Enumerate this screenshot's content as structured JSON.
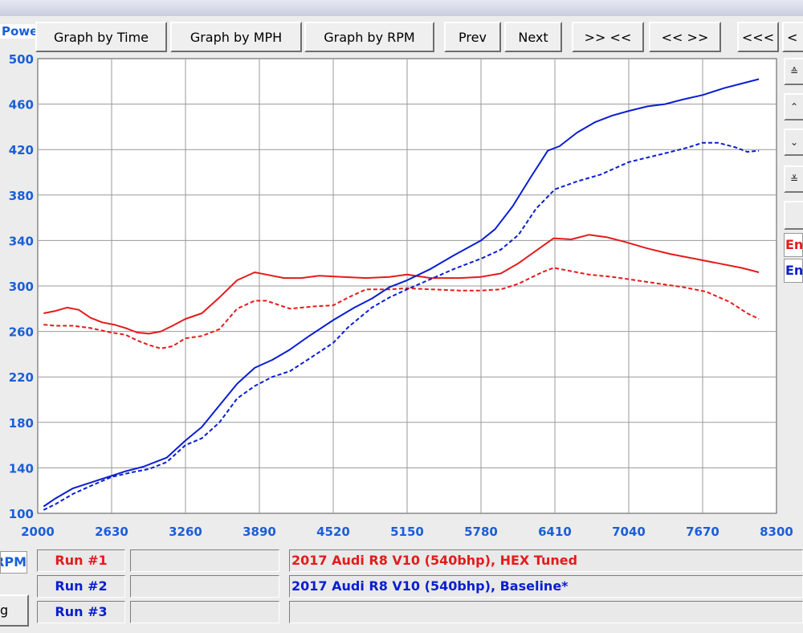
{
  "toolbar": {
    "power_label": "Powe",
    "graph_by_time": "Graph by Time",
    "graph_by_mph": "Graph by MPH",
    "graph_by_rpm": "Graph by RPM",
    "prev": "Prev",
    "next": "Next",
    "zoom_in": ">> <<",
    "zoom_out": "<< >>",
    "scroll_left": "<<<",
    "scroll_left_2": "<"
  },
  "colors": {
    "run1": "#e41b1b",
    "run2": "#0a1ed0",
    "axis_text": "#1a5fd8",
    "grid": "#9a9a9a"
  },
  "right_legend": {
    "run1_label": "Eng",
    "run2_label": "Eng"
  },
  "bottom": {
    "unit_label": "RPM",
    "button_label": "g",
    "runs": [
      {
        "label": "Run #1",
        "description": "2017 Audi R8 V10 (540bhp), HEX Tuned"
      },
      {
        "label": "Run #2",
        "description": "2017 Audi R8 V10 (540bhp), Baseline*"
      },
      {
        "label": "Run #3",
        "description": ""
      }
    ]
  },
  "chart_data": {
    "type": "line",
    "xlim": [
      2000,
      8300
    ],
    "ylim": [
      100,
      500
    ],
    "x_ticks": [
      2000,
      2630,
      3260,
      3890,
      4520,
      5150,
      5780,
      6410,
      7040,
      7670,
      8300
    ],
    "y_ticks": [
      100,
      140,
      180,
      220,
      260,
      300,
      340,
      380,
      420,
      460,
      500
    ],
    "grid": true,
    "series": [
      {
        "run": 1,
        "color": "red",
        "style": "solid",
        "points": [
          [
            2050,
            276
          ],
          [
            2150,
            278
          ],
          [
            2250,
            281
          ],
          [
            2350,
            279
          ],
          [
            2450,
            272
          ],
          [
            2550,
            268
          ],
          [
            2650,
            266
          ],
          [
            2750,
            263
          ],
          [
            2850,
            259
          ],
          [
            2950,
            258
          ],
          [
            3050,
            260
          ],
          [
            3150,
            265
          ],
          [
            3260,
            271
          ],
          [
            3400,
            276
          ],
          [
            3550,
            290
          ],
          [
            3700,
            305
          ],
          [
            3850,
            312
          ],
          [
            3950,
            310
          ],
          [
            4100,
            307
          ],
          [
            4250,
            307
          ],
          [
            4400,
            309
          ],
          [
            4600,
            308
          ],
          [
            4800,
            307
          ],
          [
            5000,
            308
          ],
          [
            5150,
            310
          ],
          [
            5350,
            307
          ],
          [
            5600,
            307
          ],
          [
            5780,
            308
          ],
          [
            5950,
            311
          ],
          [
            6100,
            320
          ],
          [
            6250,
            331
          ],
          [
            6400,
            342
          ],
          [
            6550,
            341
          ],
          [
            6700,
            345
          ],
          [
            6850,
            343
          ],
          [
            7000,
            339
          ],
          [
            7200,
            333
          ],
          [
            7400,
            328
          ],
          [
            7600,
            324
          ],
          [
            7800,
            320
          ],
          [
            8000,
            316
          ],
          [
            8150,
            312
          ]
        ]
      },
      {
        "run": 1,
        "color": "red",
        "style": "dashed",
        "points": [
          [
            2050,
            266
          ],
          [
            2150,
            265
          ],
          [
            2300,
            265
          ],
          [
            2450,
            263
          ],
          [
            2630,
            259
          ],
          [
            2750,
            257
          ],
          [
            2850,
            252
          ],
          [
            2950,
            248
          ],
          [
            3050,
            245
          ],
          [
            3150,
            247
          ],
          [
            3260,
            254
          ],
          [
            3400,
            256
          ],
          [
            3550,
            262
          ],
          [
            3700,
            280
          ],
          [
            3850,
            287
          ],
          [
            3950,
            287
          ],
          [
            4150,
            280
          ],
          [
            4350,
            282
          ],
          [
            4520,
            283
          ],
          [
            4650,
            290
          ],
          [
            4800,
            297
          ],
          [
            5000,
            297
          ],
          [
            5150,
            298
          ],
          [
            5350,
            297
          ],
          [
            5600,
            296
          ],
          [
            5780,
            296
          ],
          [
            5950,
            297
          ],
          [
            6100,
            302
          ],
          [
            6300,
            312
          ],
          [
            6400,
            316
          ],
          [
            6550,
            313
          ],
          [
            6700,
            310
          ],
          [
            6900,
            308
          ],
          [
            7100,
            305
          ],
          [
            7300,
            302
          ],
          [
            7500,
            299
          ],
          [
            7700,
            295
          ],
          [
            7900,
            286
          ],
          [
            8050,
            276
          ],
          [
            8150,
            271
          ]
        ]
      },
      {
        "run": 2,
        "color": "blue",
        "style": "solid",
        "points": [
          [
            2050,
            106
          ],
          [
            2150,
            113
          ],
          [
            2300,
            122
          ],
          [
            2450,
            127
          ],
          [
            2630,
            133
          ],
          [
            2750,
            137
          ],
          [
            2900,
            141
          ],
          [
            3100,
            149
          ],
          [
            3260,
            164
          ],
          [
            3400,
            176
          ],
          [
            3550,
            195
          ],
          [
            3700,
            214
          ],
          [
            3850,
            228
          ],
          [
            4000,
            235
          ],
          [
            4150,
            244
          ],
          [
            4300,
            255
          ],
          [
            4520,
            270
          ],
          [
            4700,
            281
          ],
          [
            4850,
            289
          ],
          [
            5000,
            299
          ],
          [
            5150,
            305
          ],
          [
            5350,
            315
          ],
          [
            5550,
            327
          ],
          [
            5780,
            340
          ],
          [
            5900,
            350
          ],
          [
            6050,
            370
          ],
          [
            6200,
            395
          ],
          [
            6350,
            419
          ],
          [
            6450,
            423
          ],
          [
            6600,
            435
          ],
          [
            6750,
            444
          ],
          [
            6900,
            450
          ],
          [
            7040,
            454
          ],
          [
            7200,
            458
          ],
          [
            7350,
            460
          ],
          [
            7500,
            464
          ],
          [
            7670,
            468
          ],
          [
            7850,
            474
          ],
          [
            8000,
            478
          ],
          [
            8150,
            482
          ]
        ]
      },
      {
        "run": 2,
        "color": "blue",
        "style": "dashed",
        "points": [
          [
            2050,
            103
          ],
          [
            2150,
            108
          ],
          [
            2300,
            117
          ],
          [
            2450,
            124
          ],
          [
            2630,
            132
          ],
          [
            2800,
            136
          ],
          [
            2950,
            139
          ],
          [
            3100,
            145
          ],
          [
            3260,
            160
          ],
          [
            3400,
            166
          ],
          [
            3550,
            180
          ],
          [
            3700,
            201
          ],
          [
            3850,
            212
          ],
          [
            4000,
            220
          ],
          [
            4150,
            225
          ],
          [
            4300,
            235
          ],
          [
            4520,
            250
          ],
          [
            4650,
            264
          ],
          [
            4850,
            281
          ],
          [
            5000,
            290
          ],
          [
            5150,
            297
          ],
          [
            5350,
            306
          ],
          [
            5550,
            315
          ],
          [
            5780,
            324
          ],
          [
            5950,
            332
          ],
          [
            6100,
            345
          ],
          [
            6250,
            368
          ],
          [
            6410,
            385
          ],
          [
            6600,
            392
          ],
          [
            6800,
            398
          ],
          [
            7040,
            409
          ],
          [
            7200,
            413
          ],
          [
            7400,
            418
          ],
          [
            7550,
            422
          ],
          [
            7670,
            426
          ],
          [
            7800,
            426
          ],
          [
            7950,
            422
          ],
          [
            8050,
            418
          ],
          [
            8150,
            419
          ]
        ]
      }
    ]
  }
}
